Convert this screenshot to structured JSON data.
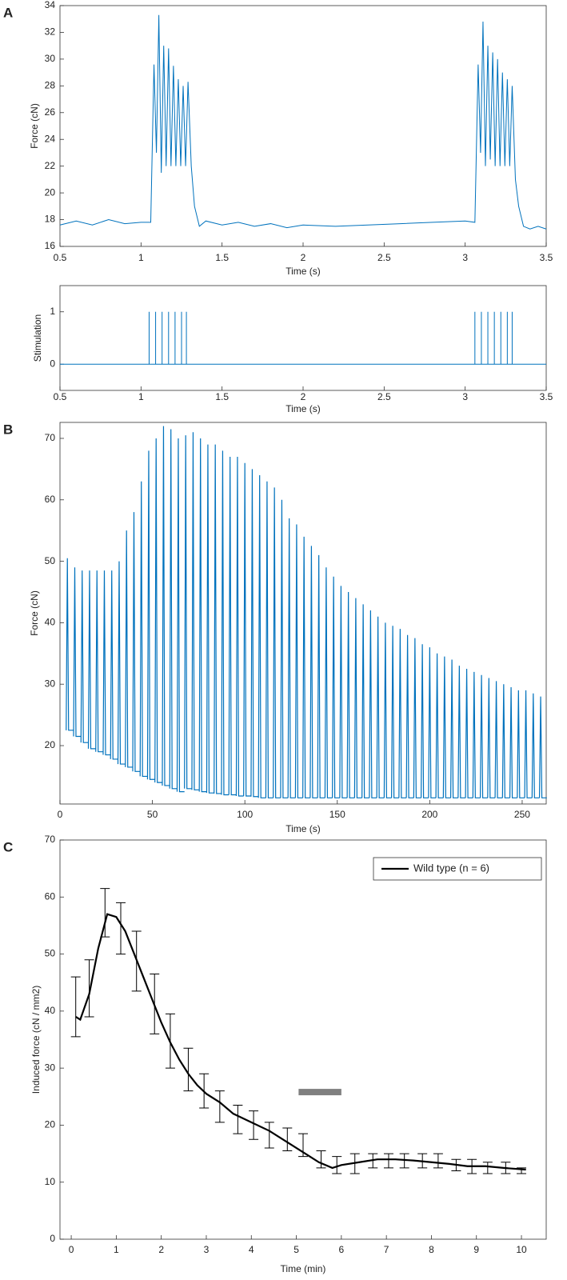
{
  "chart_data": [
    {
      "type": "line",
      "panel": "A",
      "xlabel": "Time (s)",
      "ylabel": "Force (cN)",
      "color": "#0072bd",
      "x": [
        0.5,
        0.6,
        0.7,
        0.8,
        0.9,
        1.0,
        1.06,
        1.08,
        1.095,
        1.11,
        1.125,
        1.14,
        1.155,
        1.17,
        1.185,
        1.2,
        1.215,
        1.23,
        1.245,
        1.26,
        1.275,
        1.29,
        1.31,
        1.33,
        1.36,
        1.4,
        1.5,
        1.6,
        1.7,
        1.8,
        1.9,
        2.0,
        2.2,
        2.4,
        2.6,
        2.8,
        3.0,
        3.06,
        3.08,
        3.095,
        3.11,
        3.125,
        3.14,
        3.155,
        3.17,
        3.185,
        3.2,
        3.215,
        3.23,
        3.245,
        3.26,
        3.275,
        3.29,
        3.31,
        3.33,
        3.36,
        3.4,
        3.45,
        3.5
      ],
      "values": [
        17.6,
        17.9,
        17.6,
        18.0,
        17.7,
        17.8,
        17.8,
        29.6,
        23,
        33.3,
        21.5,
        31,
        22,
        30.8,
        22,
        29.5,
        22,
        28.5,
        22,
        28,
        22,
        28.3,
        22,
        19,
        17.5,
        17.9,
        17.6,
        17.8,
        17.5,
        17.7,
        17.4,
        17.6,
        17.5,
        17.6,
        17.7,
        17.8,
        17.9,
        17.8,
        29.6,
        23,
        32.8,
        22,
        31,
        22.5,
        30.5,
        22,
        30,
        22,
        29,
        22,
        28.5,
        22,
        28,
        21,
        19,
        17.5,
        17.3,
        17.5,
        17.3
      ],
      "xlim": [
        0.5,
        3.5
      ],
      "xticks": [
        0.5,
        1,
        1.5,
        2,
        2.5,
        3,
        3.5
      ],
      "ylim": [
        16,
        34
      ],
      "yticks": [
        16,
        18,
        20,
        22,
        24,
        26,
        28,
        30,
        32,
        34
      ]
    },
    {
      "type": "stem",
      "xlabel": "Time (s)",
      "ylabel": "Stimulation",
      "color": "#0072bd",
      "x": [
        1.05,
        1.09,
        1.13,
        1.17,
        1.21,
        1.25,
        1.28,
        3.06,
        3.1,
        3.14,
        3.18,
        3.22,
        3.26,
        3.29
      ],
      "values": [
        1,
        1,
        1,
        1,
        1,
        1,
        1,
        1,
        1,
        1,
        1,
        1,
        1,
        1
      ],
      "xlim": [
        0.5,
        3.5
      ],
      "xticks": [
        0.5,
        1,
        1.5,
        2,
        2.5,
        3,
        3.5
      ],
      "ylim": [
        -0.5,
        1.5
      ],
      "yticks": [
        0,
        1
      ]
    },
    {
      "type": "spikes",
      "panel": "B",
      "xlabel": "Time (s)",
      "ylabel": "Force (cN)",
      "color": "#0072bd",
      "x": [
        4,
        8,
        12,
        16,
        20,
        24,
        28,
        32,
        36,
        40,
        44,
        48,
        52,
        56,
        60,
        64,
        68,
        72,
        76,
        80,
        84,
        88,
        92,
        96,
        100,
        104,
        108,
        112,
        116,
        120,
        124,
        128,
        132,
        136,
        140,
        144,
        148,
        152,
        156,
        160,
        164,
        168,
        172,
        176,
        180,
        184,
        188,
        192,
        196,
        200,
        204,
        208,
        212,
        216,
        220,
        224,
        228,
        232,
        236,
        240,
        244,
        248,
        252,
        256,
        260
      ],
      "peaks": [
        50.5,
        49,
        48.5,
        48.5,
        48.5,
        48.5,
        48.5,
        50,
        55,
        58,
        63,
        68,
        70,
        72,
        71.5,
        70,
        70.5,
        71,
        70,
        69,
        69,
        68,
        67,
        67,
        66,
        65,
        64,
        63,
        62,
        60,
        57,
        56,
        54,
        52.5,
        51,
        49,
        47.5,
        46,
        45,
        44,
        43,
        42,
        41,
        40,
        39.5,
        39,
        38,
        37.5,
        36.5,
        36,
        35,
        34.5,
        34,
        33,
        32.5,
        32,
        31.5,
        31,
        30.5,
        30,
        29.5,
        29,
        29,
        28.5,
        28
      ],
      "troughs": [
        22.5,
        21.5,
        20.5,
        19.5,
        19,
        18.5,
        17.8,
        17,
        16.5,
        15.8,
        15,
        14.5,
        14,
        13.5,
        13,
        12.5,
        13,
        12.8,
        12.5,
        12.3,
        12.2,
        12,
        12,
        11.8,
        11.8,
        11.7,
        11.5,
        11.5,
        11.5,
        11.5,
        11.5,
        11.5,
        11.5,
        11.5,
        11.5,
        11.5,
        11.5,
        11.5,
        11.5,
        11.5,
        11.5,
        11.5,
        11.5,
        11.5,
        11.5,
        11.5,
        11.5,
        11.5,
        11.5,
        11.5,
        11.5,
        11.5,
        11.5,
        11.5,
        11.5,
        11.5,
        11.5,
        11.5,
        11.5,
        11.5,
        11.5,
        11.5,
        11.5,
        11.5,
        11.5
      ],
      "xlim": [
        0,
        263
      ],
      "xticks": [
        0,
        50,
        100,
        150,
        200,
        250
      ],
      "ylim": [
        10.5,
        72.6
      ],
      "yticks": [
        20,
        30,
        40,
        50,
        60,
        70
      ]
    },
    {
      "type": "line",
      "panel": "C",
      "xlabel": "Time (min)",
      "ylabel": "Induced force (cN / mm2)",
      "color": "#000000",
      "legend": "upper right",
      "series_name": "Wild type (n = 6)",
      "x": [
        0.1,
        0.2,
        0.4,
        0.6,
        0.8,
        1.0,
        1.2,
        1.4,
        1.6,
        1.8,
        2.0,
        2.2,
        2.4,
        2.6,
        2.8,
        3.0,
        3.3,
        3.6,
        4.0,
        4.4,
        4.8,
        5.2,
        5.5,
        5.8,
        6.0,
        6.4,
        6.8,
        7.2,
        7.6,
        8.0,
        8.4,
        8.8,
        9.2,
        9.6,
        10.1
      ],
      "values": [
        39,
        38.5,
        43,
        51,
        57,
        56.5,
        54,
        50,
        46,
        42,
        38,
        34.5,
        31.5,
        29,
        27,
        25.5,
        24,
        22,
        20.5,
        19,
        17,
        15,
        13.5,
        12.5,
        13,
        13.5,
        14,
        14,
        13.8,
        13.5,
        13.2,
        12.8,
        12.8,
        12.5,
        12.2
      ],
      "errorbars": {
        "x": [
          0.1,
          0.4,
          0.75,
          1.1,
          1.45,
          1.85,
          2.2,
          2.6,
          2.95,
          3.3,
          3.7,
          4.05,
          4.4,
          4.8,
          5.15,
          5.55,
          5.9,
          6.3,
          6.7,
          7.05,
          7.4,
          7.8,
          8.15,
          8.55,
          8.9,
          9.25,
          9.65,
          10
        ],
        "low": [
          35.5,
          39,
          53,
          50,
          43.5,
          36,
          30,
          26,
          23,
          20.5,
          18.5,
          17.5,
          16,
          15.5,
          14.5,
          12.5,
          11.5,
          11.5,
          12.5,
          12.5,
          12.5,
          12.5,
          12.5,
          12,
          11.5,
          11.5,
          11.5,
          11.5
        ],
        "high": [
          46,
          49,
          61.5,
          59,
          54,
          46.5,
          39.5,
          33.5,
          29,
          26,
          23.5,
          22.5,
          20.5,
          19.5,
          18.5,
          15.5,
          14.5,
          15,
          15,
          15,
          15,
          15,
          15,
          14,
          14,
          13.5,
          13.5,
          12.5
        ]
      },
      "highlight": {
        "xlim": [
          5.05,
          6.0
        ],
        "y": 25.8,
        "color": "#808080"
      },
      "xlim": [
        -0.25,
        10.55
      ],
      "xticks": [
        0,
        1,
        2,
        3,
        4,
        5,
        6,
        7,
        8,
        9,
        10
      ],
      "ylim": [
        0,
        70
      ],
      "yticks": [
        0,
        10,
        20,
        30,
        40,
        50,
        60,
        70
      ]
    }
  ]
}
